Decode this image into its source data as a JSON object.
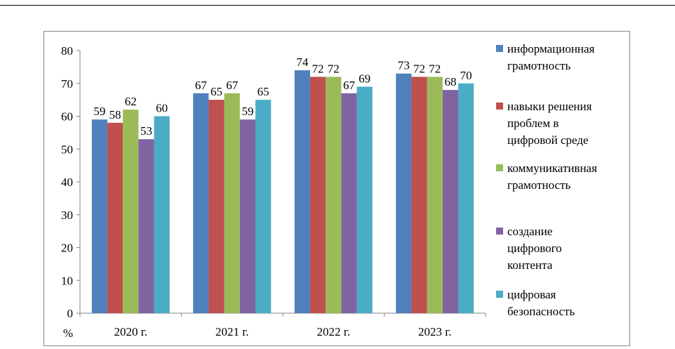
{
  "chart_data": {
    "type": "bar",
    "categories": [
      "2020 г.",
      "2021 г.",
      "2022 г.",
      "2023 г."
    ],
    "series": [
      {
        "name": "информационная грамотность",
        "color": "#4F81BD",
        "values": [
          59,
          67,
          74,
          73
        ]
      },
      {
        "name": "навыки решения проблем в цифровой среде",
        "color": "#C0504D",
        "values": [
          58,
          65,
          72,
          72
        ]
      },
      {
        "name": "коммуникативная грамотность",
        "color": "#9BBB59",
        "values": [
          62,
          67,
          72,
          72
        ]
      },
      {
        "name": "создание цифрового контента",
        "color": "#8064A2",
        "values": [
          53,
          59,
          67,
          68
        ]
      },
      {
        "name": "цифровая безопасность",
        "color": "#4BACC6",
        "values": [
          60,
          65,
          69,
          70
        ]
      }
    ],
    "legend_lines": [
      [
        "информационная",
        "грамотность"
      ],
      [
        "навыки решения",
        "проблем в",
        "цифровой среде"
      ],
      [
        "коммуникативная",
        "грамотность"
      ],
      [
        "создание",
        "цифрового",
        "контента"
      ],
      [
        "цифровая",
        "безопасность"
      ]
    ],
    "ylim": [
      0,
      80
    ],
    "yticks": [
      0,
      10,
      20,
      30,
      40,
      50,
      60,
      70,
      80
    ],
    "ylabel": "%",
    "xlabel": "",
    "title": "",
    "grid": false,
    "legend_position": "right"
  }
}
